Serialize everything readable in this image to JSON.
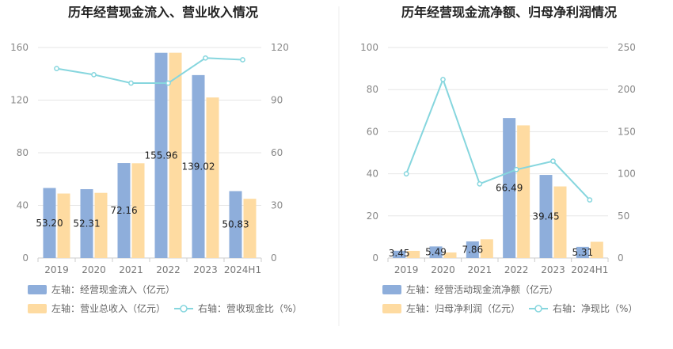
{
  "colors": {
    "bar_blue": "#8eaedb",
    "bar_yellow": "#fedba1",
    "line_cyan": "#86d6de",
    "grid": "#e6e6e6",
    "divider": "#eeeeee"
  },
  "chart_data": [
    {
      "type": "bar",
      "title": "历年经营现金流入、营业收入情况",
      "categories": [
        "2019",
        "2020",
        "2021",
        "2022",
        "2023",
        "2024H1"
      ],
      "left_axis": {
        "ylim": [
          0,
          160
        ],
        "ticks": [
          "0",
          "40",
          "80",
          "120",
          "160"
        ]
      },
      "right_axis": {
        "ylim": [
          0,
          120
        ],
        "ticks": [
          "0",
          "30",
          "60",
          "90",
          "120"
        ]
      },
      "series": [
        {
          "name": "左轴：经营现金流入（亿元）",
          "type": "bar",
          "axis": "left",
          "values": [
            53.2,
            52.31,
            72.16,
            155.96,
            139.02,
            50.83
          ],
          "labels": [
            "53.20",
            "52.31",
            "72.16",
            "155.96",
            "139.02",
            "50.83"
          ],
          "color": "#8eaedb"
        },
        {
          "name": "左轴：营业总收入（亿元）",
          "type": "bar",
          "axis": "left",
          "values": [
            49,
            49.5,
            72,
            156,
            122,
            45
          ],
          "color": "#fedba1"
        },
        {
          "name": "右轴：营收现金比（%）",
          "type": "line",
          "axis": "right",
          "values": [
            108,
            104.5,
            99.7,
            99.7,
            114,
            113
          ],
          "color": "#86d6de"
        }
      ],
      "grid": true,
      "legend_position": "bottom"
    },
    {
      "type": "bar",
      "title": "历年经营现金流净额、归母净利润情况",
      "categories": [
        "2019",
        "2020",
        "2021",
        "2022",
        "2023",
        "2024H1"
      ],
      "left_axis": {
        "ylim": [
          0,
          100
        ],
        "ticks": [
          "0",
          "20",
          "40",
          "60",
          "80",
          "100"
        ]
      },
      "right_axis": {
        "ylim": [
          0,
          250
        ],
        "ticks": [
          "0",
          "50",
          "100",
          "150",
          "200",
          "250"
        ]
      },
      "series": [
        {
          "name": "左轴：经营活动现金流净额（亿元）",
          "type": "bar",
          "axis": "left",
          "values": [
            3.45,
            5.49,
            7.86,
            66.49,
            39.45,
            5.31
          ],
          "labels": [
            "3.45",
            "5.49",
            "7.86",
            "66.49",
            "39.45",
            "5.31"
          ],
          "color": "#8eaedb"
        },
        {
          "name": "左轴：归母净利润（亿元）",
          "type": "bar",
          "axis": "left",
          "values": [
            3.4,
            2.6,
            8.9,
            63,
            34,
            7.7
          ],
          "color": "#fedba1"
        },
        {
          "name": "右轴：净现比（%）",
          "type": "line",
          "axis": "right",
          "values": [
            100,
            212,
            88,
            105,
            115,
            69
          ],
          "color": "#86d6de"
        }
      ],
      "grid": true,
      "legend_position": "bottom"
    }
  ]
}
